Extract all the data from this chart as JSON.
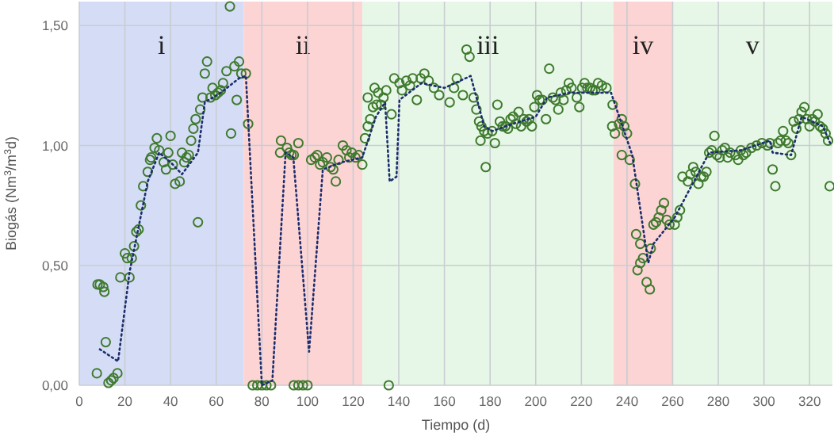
{
  "chart_data": {
    "type": "scatter",
    "xlabel": "Tiempo (d)",
    "ylabel": "Biogás (Nm$^{3}$/m$^{3}$d)",
    "xlim": [
      0,
      330
    ],
    "xticks": [
      0,
      20,
      40,
      60,
      80,
      100,
      120,
      140,
      160,
      180,
      200,
      220,
      240,
      260,
      280,
      300,
      320
    ],
    "ylim": [
      0,
      1.6
    ],
    "yticks": [
      {
        "value": 0,
        "label": "0,00"
      },
      {
        "value": 0.5,
        "label": "0,50"
      },
      {
        "value": 1,
        "label": "1,00"
      },
      {
        "value": 1.5,
        "label": "1,50"
      }
    ],
    "grid": true,
    "bands": [
      {
        "axis": "x",
        "from": 0,
        "to": 72,
        "label": "i",
        "color": "#d5ddf6"
      },
      {
        "axis": "x",
        "from": 72,
        "to": 124,
        "label": "ii",
        "color": "#fcd4d4"
      },
      {
        "axis": "x",
        "from": 124,
        "to": 234,
        "label": "iii",
        "color": "#e7f7e7"
      },
      {
        "axis": "x",
        "from": 234,
        "to": 260,
        "label": "iv",
        "color": "#fcd4d4"
      },
      {
        "axis": "x",
        "from": 260,
        "to": 330,
        "label": "v",
        "color": "#e7f7e7"
      }
    ],
    "series": [
      {
        "color": "#3f7a2e",
        "marker": "circle",
        "x": [
          7.7,
          8,
          9,
          10.5,
          11,
          11.6,
          12.8,
          14,
          15,
          16.7,
          18,
          20,
          21,
          22,
          23,
          24,
          25,
          26,
          27,
          28,
          30,
          31,
          31.5,
          33,
          34,
          35,
          37,
          38,
          39,
          40,
          41,
          42,
          44,
          45,
          46,
          47,
          48,
          49,
          50,
          51,
          52,
          53,
          54,
          55,
          56,
          57.5,
          58.4,
          59.6,
          60.8,
          62,
          63,
          64.5,
          66,
          66.5,
          68,
          69,
          70,
          71,
          73,
          74,
          76,
          78,
          80,
          82,
          84,
          88,
          88.4,
          91,
          92,
          93,
          94,
          96,
          94,
          96,
          98,
          100,
          101.6,
          103.2,
          104.3,
          105.5,
          106.7,
          108.5,
          110.1,
          111.3,
          112.4,
          113.6,
          115.5,
          117.1,
          118.3,
          119.4,
          121,
          122.4,
          124,
          125.2,
          126.4,
          126.4,
          127.5,
          128.7,
          129.4,
          130.3,
          131,
          132.2,
          133.3,
          134.5,
          135.6,
          136.8,
          138,
          140.3,
          141.4,
          143.3,
          144.9,
          146.1,
          147.9,
          149.6,
          151.2,
          153.1,
          155.4,
          157.7,
          162.3,
          164.2,
          165.4,
          168.1,
          169.7,
          171,
          172.8,
          174,
          175.2,
          175.8,
          176.2,
          177.4,
          178.1,
          178.9,
          180.9,
          182.1,
          183.2,
          184.3,
          185.5,
          186.7,
          187.8,
          189,
          190.1,
          191.3,
          192.5,
          193.6,
          194.8,
          196,
          197.1,
          198.3,
          199.4,
          200.6,
          201.7,
          202.9,
          204.5,
          205.9,
          207.5,
          208.7,
          209.9,
          211,
          212.2,
          213.4,
          214.5,
          215.7,
          218,
          219.1,
          220.3,
          221.4,
          222.6,
          223.8,
          224.9,
          226.1,
          227.3,
          229,
          231,
          233.7,
          233.5,
          234.7,
          236.5,
          237.7,
          238.8,
          240,
          237.7,
          241.2,
          243.5,
          244,
          245.8,
          247,
          244.6,
          245.8,
          248.6,
          250,
          250.4,
          251.6,
          252.7,
          253.9,
          255,
          256.2,
          257.4,
          258.6,
          260.9,
          262,
          263.2,
          264.3,
          266.7,
          267.8,
          269,
          270.1,
          271.3,
          272.5,
          273.6,
          274.8,
          276,
          277.1,
          278.3,
          279.4,
          280.6,
          281.7,
          282.9,
          284.1,
          285.2,
          287.5,
          288.7,
          289.9,
          291,
          292.2,
          294.5,
          296.8,
          299.1,
          301.5,
          302.6,
          303.8,
          305,
          306.1,
          307.3,
          308.4,
          309.6,
          310.7,
          311.9,
          313,
          314.2,
          315.4,
          316.5,
          317.7,
          318.8,
          320,
          321.2,
          322.3,
          323.5,
          324.6,
          325.8,
          327,
          328.1,
          328.8
        ],
        "values": [
          0.05,
          0.42,
          0.42,
          0.41,
          0.39,
          0.18,
          0.01,
          0.02,
          0.03,
          0.05,
          0.45,
          0.55,
          0.53,
          0.45,
          0.53,
          0.58,
          0.64,
          0.65,
          0.75,
          0.83,
          0.89,
          0.94,
          0.95,
          0.99,
          1.03,
          0.98,
          0.93,
          0.9,
          0.97,
          1.04,
          0.92,
          0.84,
          0.85,
          0.97,
          0.93,
          0.95,
          0.96,
          1.02,
          1.07,
          1.11,
          0.68,
          1.15,
          1.2,
          1.3,
          1.35,
          1.2,
          1.24,
          1.21,
          1.22,
          1.23,
          1.26,
          1.31,
          1.58,
          1.05,
          1.33,
          1.19,
          1.35,
          1.3,
          1.3,
          1.09,
          0,
          0,
          0,
          0,
          0,
          0.97,
          1.02,
          0.99,
          0.97,
          0.96,
          0.96,
          1.01,
          0,
          0,
          0,
          0,
          0.94,
          0.95,
          0.96,
          0.92,
          0.93,
          0.95,
          0.91,
          0.9,
          0.85,
          0.94,
          1,
          0.98,
          0.95,
          0.97,
          0.95,
          0.96,
          0.92,
          1.03,
          1.08,
          1.2,
          1.11,
          1.16,
          1.24,
          1.17,
          1.22,
          1.17,
          1.2,
          1.23,
          0,
          1.13,
          1.28,
          1.26,
          1.23,
          1.27,
          1.25,
          1.28,
          1.19,
          1.28,
          1.3,
          1.27,
          1.24,
          1.21,
          1.18,
          1.24,
          1.28,
          1.21,
          1.4,
          1.37,
          1.2,
          1.15,
          1.1,
          1.02,
          1.08,
          1.06,
          0.91,
          1.05,
          1.06,
          1.01,
          1.17,
          1.1,
          1.08,
          1.08,
          1.07,
          1.11,
          1.12,
          1.09,
          1.14,
          1.08,
          1.11,
          1.1,
          1.11,
          1.08,
          1.16,
          1.21,
          1.19,
          1.19,
          1.11,
          1.32,
          1.2,
          1.19,
          1.15,
          1.22,
          1.19,
          1.23,
          1.26,
          1.24,
          1.2,
          1.16,
          1.24,
          1.26,
          1.24,
          1.24,
          1.23,
          1.23,
          1.26,
          1.25,
          1.24,
          1.17,
          1.08,
          1.05,
          1.09,
          1.11,
          1.08,
          1.05,
          0.96,
          0.94,
          0.84,
          0.63,
          0.59,
          0.53,
          0.48,
          0.51,
          0.43,
          0.4,
          0.57,
          0.67,
          0.68,
          0.7,
          0.73,
          0.76,
          0.69,
          0.67,
          0.67,
          0.7,
          0.73,
          0.87,
          0.85,
          0.88,
          0.91,
          0.89,
          0.84,
          0.87,
          0.87,
          0.89,
          0.97,
          0.98,
          1.04,
          0.96,
          0.95,
          0.98,
          0.99,
          0.95,
          0.97,
          0.96,
          0.94,
          0.98,
          0.96,
          0.97,
          0.99,
          1,
          1.01,
          1,
          1.01,
          0.9,
          0.83,
          1.01,
          1.02,
          1.06,
          1.02,
          1.01,
          0.96,
          1.1,
          1.07,
          1.11,
          1.14,
          1.16,
          1.11,
          1.08,
          1.11,
          1.1,
          1.13,
          1.08,
          1.07,
          1.05,
          1.02,
          0.83
        ]
      },
      {
        "type": "line",
        "color": "#1c2d6e",
        "line_style": "dotted",
        "marker": "none",
        "x": [
          9,
          17,
          22,
          30,
          35,
          40,
          45,
          52,
          55,
          62,
          70,
          73,
          80,
          84.6,
          90.4,
          93.8,
          100.7,
          106.7,
          115,
          124,
          130,
          134,
          136,
          139,
          140.3,
          150,
          160,
          171.5,
          177.4,
          181,
          190,
          200,
          205,
          215,
          233,
          242.3,
          249.3,
          251.6,
          260.9,
          276,
          289.9,
          302.6,
          303.8,
          311.9,
          316.5,
          325.8,
          329
        ],
        "values": [
          0.15,
          0.1,
          0.47,
          0.85,
          0.97,
          0.93,
          0.88,
          0.97,
          1.18,
          1.22,
          1.28,
          1.29,
          0,
          0.02,
          0.97,
          0.95,
          0.14,
          0.9,
          0.93,
          0.95,
          1.12,
          1.18,
          0.85,
          0.87,
          1.19,
          1.26,
          1.24,
          1.29,
          1.08,
          1.06,
          1.09,
          1.12,
          1.2,
          1.22,
          1.22,
          0.96,
          0.51,
          0.59,
          0.7,
          0.97,
          0.98,
          1.02,
          0.97,
          0.96,
          1.12,
          1.08,
          1.01
        ]
      }
    ]
  }
}
